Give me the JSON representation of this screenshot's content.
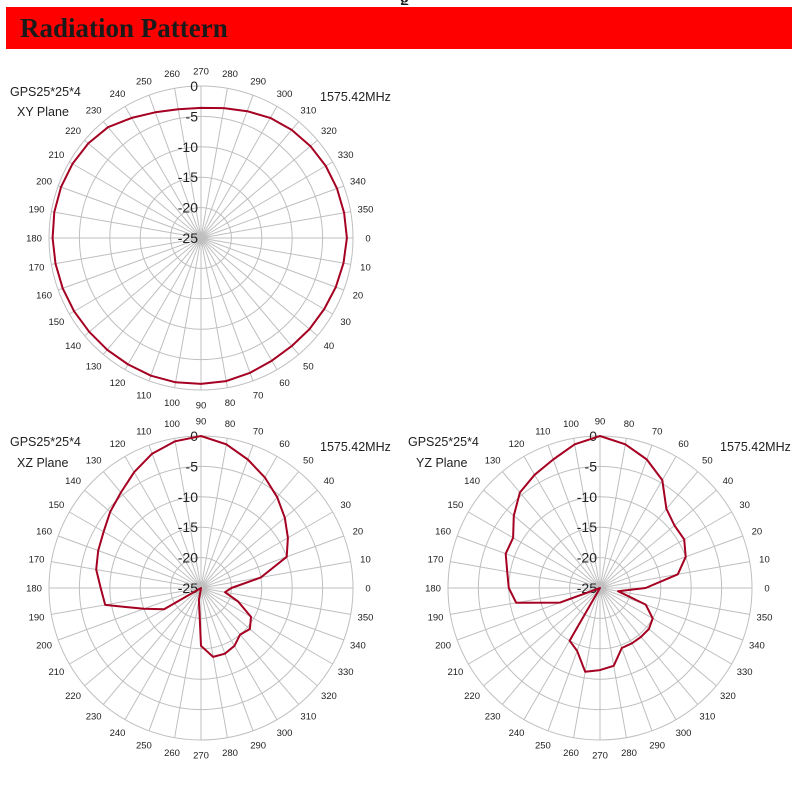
{
  "header": {
    "title": "Radiation Pattern",
    "top_fragment": "g",
    "bar_color": "#ff0000"
  },
  "style": {
    "trace_color": "#a50021",
    "grid_color": "#bfbfbf"
  },
  "chart_data": [
    {
      "type": "polar-line",
      "title": "GPS25*25*4",
      "subtitle": "XY Plane",
      "frequency_label": "1575.42MHz",
      "r_ticks": [
        0,
        -5,
        -10,
        -15,
        -20,
        -25
      ],
      "r_range": [
        -25,
        0
      ],
      "angle_ticks": [
        0,
        10,
        20,
        30,
        40,
        50,
        60,
        70,
        80,
        90,
        100,
        110,
        120,
        130,
        140,
        150,
        160,
        170,
        180,
        190,
        200,
        210,
        220,
        230,
        240,
        250,
        260,
        270,
        280,
        290,
        300,
        310,
        320,
        330,
        340,
        350
      ],
      "zero_angle_position": "right",
      "direction": "clockwise",
      "series": [
        {
          "angles": [
            0,
            10,
            20,
            30,
            40,
            50,
            60,
            70,
            80,
            90,
            100,
            110,
            120,
            130,
            140,
            150,
            160,
            170,
            180,
            190,
            200,
            210,
            220,
            230,
            240,
            250,
            260,
            270,
            280,
            290,
            300,
            310,
            320,
            330,
            340,
            350
          ],
          "values": [
            -1.0,
            -1.2,
            -1.4,
            -1.6,
            -1.7,
            -1.8,
            -1.7,
            -1.4,
            -1.1,
            -1.0,
            -0.9,
            -0.9,
            -1.0,
            -1.0,
            -1.0,
            -0.9,
            -0.8,
            -0.7,
            -0.6,
            -0.5,
            -0.5,
            -0.6,
            -0.8,
            -1.2,
            -2.2,
            -3.0,
            -3.5,
            -3.6,
            -3.3,
            -2.8,
            -2.2,
            -1.8,
            -1.5,
            -1.3,
            -1.2,
            -1.1
          ]
        }
      ]
    },
    {
      "type": "polar-line",
      "title": "GPS25*25*4",
      "subtitle": "XZ Plane",
      "frequency_label": "1575.42MHz",
      "r_ticks": [
        0,
        -5,
        -10,
        -15,
        -20,
        -25
      ],
      "r_range": [
        -25,
        0
      ],
      "angle_ticks": [
        0,
        10,
        20,
        30,
        40,
        50,
        60,
        70,
        80,
        90,
        100,
        110,
        120,
        130,
        140,
        150,
        160,
        170,
        180,
        190,
        200,
        210,
        220,
        230,
        240,
        250,
        260,
        270,
        280,
        290,
        300,
        310,
        320,
        330,
        340,
        350
      ],
      "zero_angle_position": "right",
      "direction": "counterclockwise",
      "series": [
        {
          "angles": [
            0,
            10,
            20,
            30,
            40,
            50,
            60,
            70,
            80,
            90,
            100,
            110,
            120,
            130,
            140,
            150,
            160,
            170,
            180,
            190,
            200,
            210,
            220,
            230,
            240,
            250,
            260,
            270,
            280,
            290,
            300,
            310,
            320,
            330,
            340,
            350
          ],
          "values": [
            -20.0,
            -15.0,
            -10.0,
            -8.5,
            -7.0,
            -5.5,
            -4.0,
            -2.5,
            -1.0,
            0.0,
            -0.5,
            -1.5,
            -3.0,
            -4.5,
            -5.5,
            -6.5,
            -7.0,
            -7.5,
            -8.5,
            -9.0,
            -15.0,
            -18.0,
            -25.0,
            -25.0,
            -25.0,
            -25.0,
            -23.0,
            -15.5,
            -13.5,
            -13.5,
            -14.0,
            -15.0,
            -14.5,
            -15.5,
            -18.5,
            -21.0
          ]
        }
      ]
    },
    {
      "type": "polar-line",
      "title": "GPS25*25*4",
      "subtitle": "YZ Plane",
      "frequency_label": "1575.42MHz",
      "r_ticks": [
        0,
        -5,
        -10,
        -15,
        -20,
        -25
      ],
      "r_range": [
        -25,
        0
      ],
      "angle_ticks": [
        0,
        10,
        20,
        30,
        40,
        50,
        60,
        70,
        80,
        90,
        100,
        110,
        120,
        130,
        140,
        150,
        160,
        170,
        180,
        190,
        200,
        210,
        220,
        230,
        240,
        250,
        260,
        270,
        280,
        290,
        300,
        310,
        320,
        330,
        340,
        350
      ],
      "zero_angle_position": "right",
      "direction": "counterclockwise",
      "series": [
        {
          "angles": [
            0,
            10,
            20,
            30,
            40,
            50,
            60,
            70,
            80,
            90,
            100,
            110,
            120,
            130,
            140,
            150,
            160,
            170,
            180,
            190,
            200,
            210,
            220,
            230,
            240,
            250,
            260,
            270,
            280,
            290,
            300,
            310,
            320,
            330,
            340,
            350
          ],
          "values": [
            -17.5,
            -12.0,
            -10.0,
            -9.0,
            -9.0,
            -8.0,
            -4.5,
            -2.5,
            -1.0,
            0.0,
            -1.0,
            -2.5,
            -3.5,
            -4.5,
            -6.5,
            -8.5,
            -8.5,
            -9.5,
            -10.0,
            -11.0,
            -18.0,
            -25.0,
            -25.0,
            -25.0,
            -15.0,
            -14.0,
            -11.0,
            -11.5,
            -12.0,
            -14.5,
            -14.5,
            -14.5,
            -14.5,
            -15.0,
            -17.0,
            -22.0
          ]
        }
      ]
    }
  ]
}
